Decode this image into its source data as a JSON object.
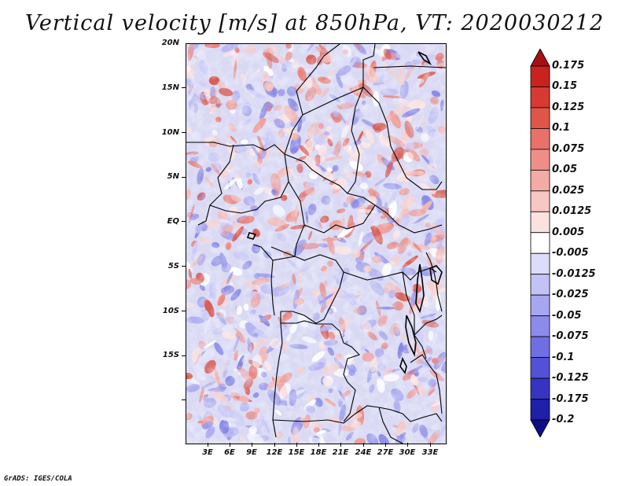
{
  "title": "Vertical velocity [m/s] at 850hPa, VT: 2020030212",
  "credit": "GrADS: IGES/COLA",
  "map": {
    "variable": "Vertical velocity",
    "units": "m/s",
    "level": "850hPa",
    "valid_time": "2020030212",
    "lat_labels": [
      "20N",
      "15N",
      "10N",
      "5N",
      "EQ",
      "5S",
      "10S",
      "15S"
    ],
    "lon_labels": [
      "3E",
      "6E",
      "9E",
      "12E",
      "15E",
      "18E",
      "21E",
      "24E",
      "27E",
      "30E",
      "33E"
    ]
  },
  "colorbar": {
    "labels": [
      "0.175",
      "0.15",
      "0.125",
      "0.1",
      "0.075",
      "0.05",
      "0.025",
      "0.0125",
      "0.005",
      "-0.005",
      "-0.0125",
      "-0.025",
      "-0.05",
      "-0.075",
      "-0.1",
      "-0.125",
      "-0.175",
      "-0.2"
    ],
    "colors": [
      "#a50f15",
      "#c9221f",
      "#d73a32",
      "#e0554a",
      "#e8716a",
      "#ef8e88",
      "#f4aba6",
      "#f8c6c3",
      "#fbe1df",
      "#ffffff",
      "#dcdcfb",
      "#c2c2f7",
      "#a6a6f2",
      "#8b8bec",
      "#6f6fe4",
      "#5252d6",
      "#3535c2",
      "#1f1fa8",
      "#0e0e86"
    ]
  }
}
